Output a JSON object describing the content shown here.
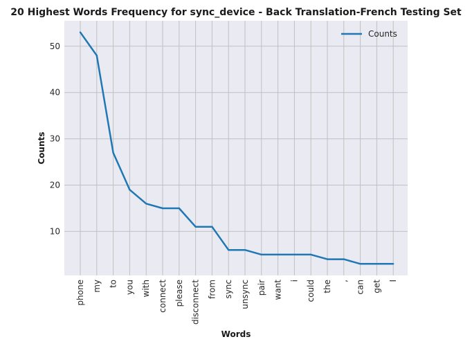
{
  "chart_data": {
    "type": "line",
    "title": "20 Highest Words Frequency for sync_device - Back Translation-French Testing Set",
    "xlabel": "Words",
    "ylabel": "Counts",
    "categories": [
      "phone",
      "my",
      "to",
      "you",
      "with",
      "connect",
      "please",
      "disconnect",
      "from",
      "sync",
      "unsync",
      "pair",
      "want",
      "i",
      "could",
      "the",
      ",",
      "can",
      "get",
      "I"
    ],
    "series": [
      {
        "name": "Counts",
        "values": [
          53,
          48,
          27,
          19,
          16,
          15,
          15,
          11,
          11,
          6,
          6,
          5,
          5,
          5,
          5,
          4,
          4,
          3,
          3,
          3
        ]
      }
    ],
    "yticks": [
      10,
      20,
      30,
      40,
      50
    ],
    "ylim": [
      0.5,
      55.5
    ],
    "grid": true,
    "legend": "top-right",
    "colors": {
      "line": "#1f77b4",
      "plot_background": "#eaeaf2",
      "grid": "#c0c0c0"
    }
  }
}
